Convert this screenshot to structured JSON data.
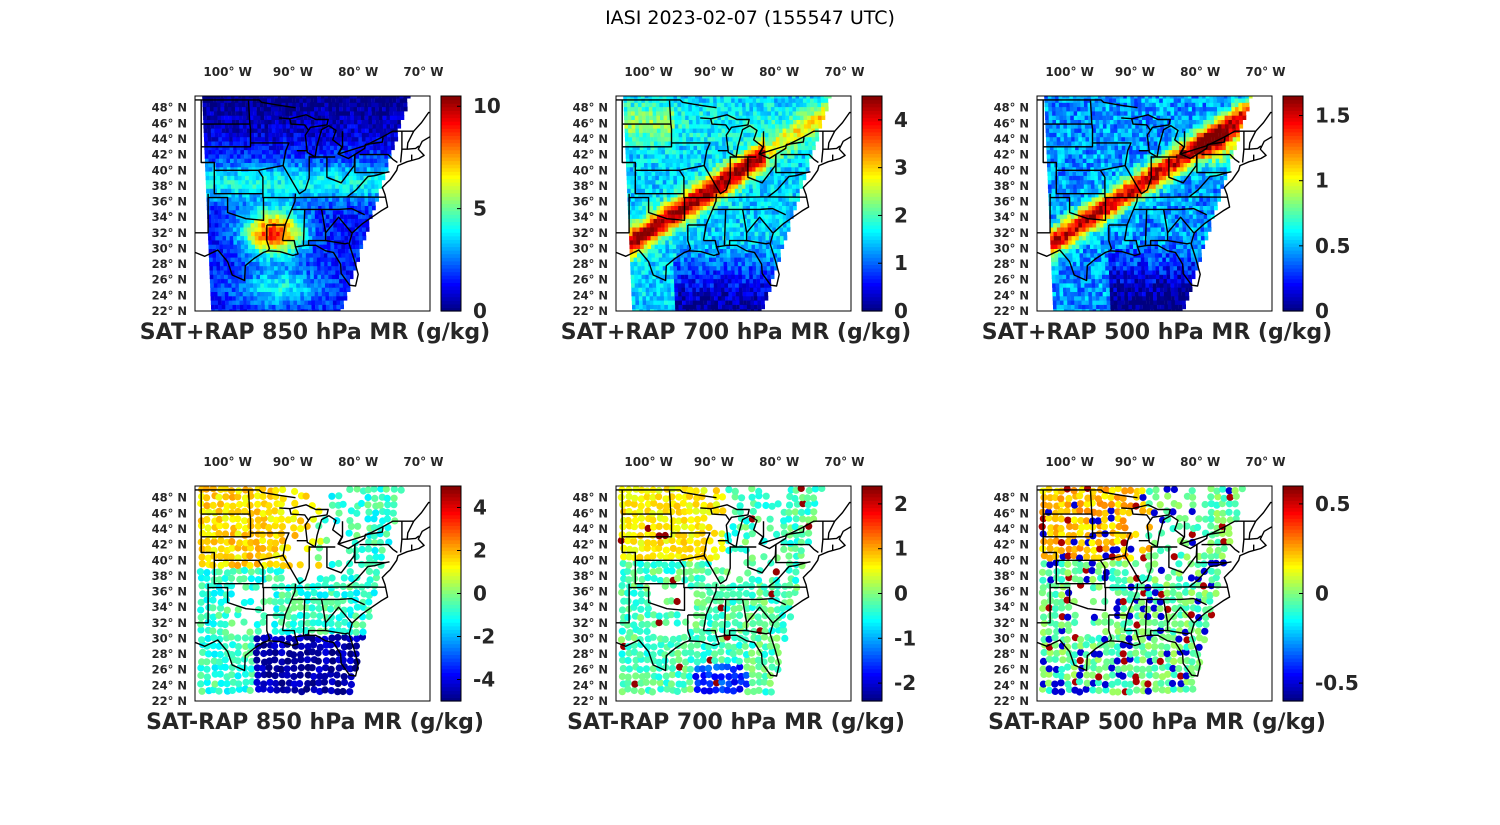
{
  "figure": {
    "title": "IASI 2023-02-07 (155547 UTC)",
    "lon_ticks": [
      "100° W",
      "90° W",
      "80° W",
      "70° W"
    ],
    "lat_ticks": [
      "48° N",
      "46° N",
      "44° N",
      "42° N",
      "40° N",
      "38° N",
      "36° N",
      "34° N",
      "32° N",
      "30° N",
      "28° N",
      "26° N",
      "24° N",
      "22° N"
    ],
    "colormap": "jet",
    "map_extent": {
      "lon": [
        -105,
        -69
      ],
      "lat": [
        22,
        49.5
      ]
    }
  },
  "panels": [
    {
      "id": "p1",
      "title": "SAT+RAP 850 hPa MR (g/kg)",
      "kind": "total",
      "level": "850 hPa",
      "colorbar": {
        "range": [
          0,
          10.5
        ],
        "ticks": [
          0,
          5,
          10
        ],
        "tick_labels": [
          "0",
          "5",
          "10"
        ]
      }
    },
    {
      "id": "p2",
      "title": "SAT+RAP 700 hPa MR (g/kg)",
      "kind": "total",
      "level": "700 hPa",
      "colorbar": {
        "range": [
          0,
          4.5
        ],
        "ticks": [
          0,
          1,
          2,
          3,
          4
        ],
        "tick_labels": [
          "0",
          "1",
          "2",
          "3",
          "4"
        ]
      }
    },
    {
      "id": "p3",
      "title": "SAT+RAP 500 hPa MR (g/kg)",
      "kind": "total",
      "level": "500 hPa",
      "colorbar": {
        "range": [
          0,
          1.65
        ],
        "ticks": [
          0,
          0.5,
          1,
          1.5
        ],
        "tick_labels": [
          "0",
          "0.5",
          "1",
          "1.5"
        ]
      }
    },
    {
      "id": "p4",
      "title": "SAT-RAP 850 hPa MR (g/kg)",
      "kind": "diff",
      "level": "850 hPa",
      "colorbar": {
        "range": [
          -5,
          5
        ],
        "ticks": [
          -4,
          -2,
          0,
          2,
          4
        ],
        "tick_labels": [
          "-4",
          "-2",
          "0",
          "2",
          "4"
        ]
      }
    },
    {
      "id": "p5",
      "title": "SAT-RAP 700 hPa MR (g/kg)",
      "kind": "diff",
      "level": "700 hPa",
      "colorbar": {
        "range": [
          -2.4,
          2.4
        ],
        "ticks": [
          -2,
          -1,
          0,
          1,
          2
        ],
        "tick_labels": [
          "-2",
          "-1",
          "0",
          "1",
          "2"
        ]
      }
    },
    {
      "id": "p6",
      "title": "SAT-RAP 500 hPa MR (g/kg)",
      "kind": "diff",
      "level": "500 hPa",
      "colorbar": {
        "range": [
          -0.6,
          0.6
        ],
        "ticks": [
          -0.5,
          0,
          0.5
        ],
        "tick_labels": [
          "-0.5",
          "0",
          "0.5"
        ]
      }
    }
  ]
}
